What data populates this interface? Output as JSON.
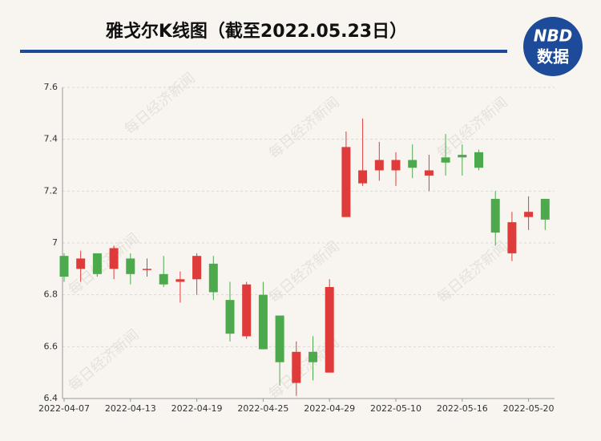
{
  "chart_data": {
    "type": "candlestick",
    "title": "雅戈尔K线图（截至2022.05.23日）",
    "logo": {
      "top": "NBD",
      "bottom": "数据"
    },
    "watermark": "每日经济新闻",
    "categories": [
      "2022-04-07",
      null,
      null,
      null,
      "2022-04-13",
      null,
      null,
      null,
      "2022-04-19",
      null,
      null,
      null,
      "2022-04-25",
      null,
      null,
      null,
      "2022-04-29",
      null,
      null,
      null,
      "2022-05-10",
      null,
      null,
      null,
      "2022-05-16",
      null,
      null,
      null,
      "2022-05-20",
      null
    ],
    "open": [
      6.95,
      6.9,
      6.96,
      6.9,
      6.94,
      6.9,
      6.88,
      6.85,
      6.86,
      6.92,
      6.78,
      6.64,
      6.8,
      6.72,
      6.46,
      6.58,
      6.5,
      7.1,
      7.23,
      7.28,
      7.28,
      7.32,
      7.26,
      7.33,
      7.34,
      7.35,
      7.17,
      6.96,
      7.1,
      7.17
    ],
    "high": [
      6.96,
      6.97,
      6.96,
      6.99,
      6.96,
      6.94,
      6.95,
      6.89,
      6.96,
      6.95,
      6.85,
      6.85,
      6.85,
      6.72,
      6.62,
      6.64,
      6.86,
      7.43,
      7.48,
      7.39,
      7.35,
      7.38,
      7.34,
      7.42,
      7.38,
      7.36,
      7.2,
      7.12,
      7.18,
      7.17
    ],
    "low": [
      6.85,
      6.85,
      6.87,
      6.86,
      6.84,
      6.87,
      6.83,
      6.77,
      6.8,
      6.78,
      6.62,
      6.63,
      6.59,
      6.45,
      6.41,
      6.47,
      6.5,
      7.1,
      7.22,
      7.24,
      7.22,
      7.25,
      7.2,
      7.26,
      7.26,
      7.28,
      6.99,
      6.93,
      7.05,
      7.05
    ],
    "close": [
      6.87,
      6.94,
      6.88,
      6.98,
      6.88,
      6.9,
      6.84,
      6.86,
      6.95,
      6.81,
      6.65,
      6.84,
      6.59,
      6.54,
      6.58,
      6.54,
      6.83,
      7.37,
      7.28,
      7.32,
      7.32,
      7.29,
      7.28,
      7.31,
      7.33,
      7.29,
      7.04,
      7.08,
      7.12,
      7.09
    ],
    "up_color": "#e03b3b",
    "down_color": "#4caa4c",
    "ylim": [
      6.4,
      7.6
    ],
    "yticks": [
      6.4,
      6.6,
      6.8,
      7,
      7.2,
      7.4,
      7.6
    ],
    "grid": true
  }
}
